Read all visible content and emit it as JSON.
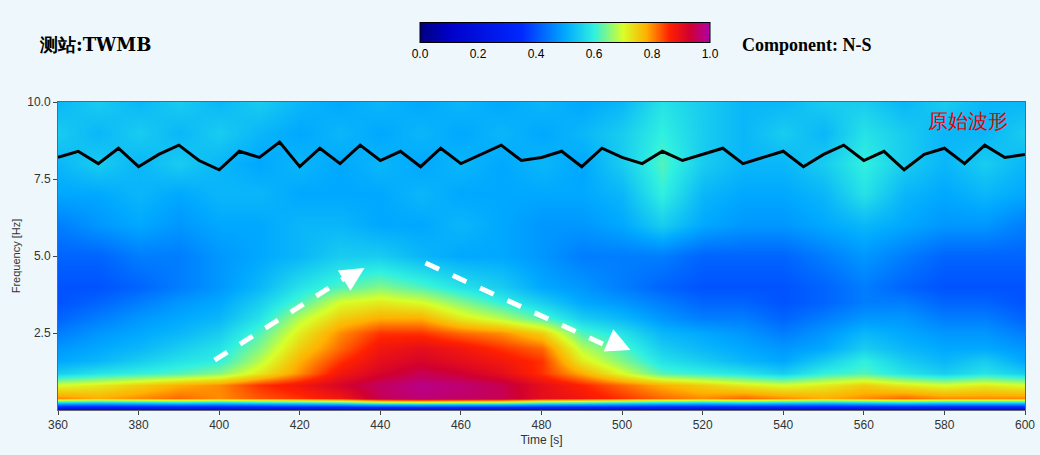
{
  "chart_data": {
    "type": "heatmap",
    "title": "测站:TWMB",
    "subtitle": "Component: N-S",
    "x_label": "Time [s]",
    "y_label": "Frequency [Hz]",
    "xlim": [
      360,
      600
    ],
    "xticks": [
      360,
      380,
      400,
      420,
      440,
      460,
      480,
      500,
      520,
      540,
      560,
      580,
      600
    ],
    "ylim": [
      0,
      10
    ],
    "yticks": [
      2.5,
      {
        "value": 5,
        "label": "5.0"
      },
      7.5,
      {
        "value": 10,
        "label": "10.0"
      }
    ],
    "grid": false,
    "x": [
      360,
      370,
      380,
      390,
      400,
      410,
      420,
      430,
      440,
      450,
      460,
      470,
      480,
      490,
      500,
      510,
      520,
      530,
      540,
      550,
      560,
      570,
      580,
      590,
      600
    ],
    "y": [
      0.0,
      0.4,
      0.8,
      1.2,
      1.6,
      2.0,
      2.5,
      3.0,
      3.5,
      4.0,
      5.0,
      6.0,
      7.0,
      8.0,
      9.0,
      10.0
    ],
    "z": [
      [
        0.15,
        0.15,
        0.15,
        0.15,
        0.15,
        0.15,
        0.15,
        0.15,
        0.15,
        0.15,
        0.15,
        0.15,
        0.15,
        0.15,
        0.15,
        0.15,
        0.15,
        0.15,
        0.15,
        0.15,
        0.15,
        0.15,
        0.15,
        0.15,
        0.15
      ],
      [
        0.8,
        0.78,
        0.8,
        0.82,
        0.8,
        0.83,
        0.85,
        0.88,
        0.95,
        0.97,
        0.96,
        0.95,
        0.9,
        0.88,
        0.85,
        0.82,
        0.8,
        0.82,
        0.8,
        0.78,
        0.8,
        0.82,
        0.8,
        0.8,
        0.8
      ],
      [
        0.7,
        0.72,
        0.75,
        0.78,
        0.8,
        0.85,
        0.88,
        0.92,
        0.96,
        0.98,
        0.97,
        0.95,
        0.9,
        0.86,
        0.82,
        0.78,
        0.75,
        0.72,
        0.7,
        0.72,
        0.75,
        0.72,
        0.7,
        0.72,
        0.7
      ],
      [
        0.55,
        0.58,
        0.6,
        0.62,
        0.65,
        0.72,
        0.8,
        0.88,
        0.92,
        0.95,
        0.93,
        0.9,
        0.85,
        0.78,
        0.7,
        0.62,
        0.6,
        0.58,
        0.55,
        0.6,
        0.62,
        0.58,
        0.55,
        0.58,
        0.55
      ],
      [
        0.5,
        0.52,
        0.55,
        0.58,
        0.6,
        0.68,
        0.78,
        0.85,
        0.9,
        0.92,
        0.9,
        0.88,
        0.85,
        0.72,
        0.65,
        0.58,
        0.55,
        0.52,
        0.5,
        0.55,
        0.6,
        0.55,
        0.52,
        0.55,
        0.5
      ],
      [
        0.48,
        0.5,
        0.52,
        0.55,
        0.58,
        0.65,
        0.75,
        0.82,
        0.88,
        0.9,
        0.88,
        0.85,
        0.82,
        0.68,
        0.62,
        0.55,
        0.52,
        0.5,
        0.48,
        0.5,
        0.55,
        0.52,
        0.5,
        0.5,
        0.48
      ],
      [
        0.45,
        0.48,
        0.5,
        0.52,
        0.55,
        0.62,
        0.72,
        0.8,
        0.85,
        0.85,
        0.82,
        0.8,
        0.75,
        0.62,
        0.58,
        0.52,
        0.5,
        0.48,
        0.45,
        0.48,
        0.52,
        0.5,
        0.48,
        0.48,
        0.45
      ],
      [
        0.42,
        0.45,
        0.48,
        0.5,
        0.52,
        0.58,
        0.68,
        0.75,
        0.78,
        0.78,
        0.72,
        0.68,
        0.62,
        0.55,
        0.52,
        0.48,
        0.45,
        0.45,
        0.42,
        0.45,
        0.48,
        0.48,
        0.45,
        0.45,
        0.42
      ],
      [
        0.4,
        0.42,
        0.45,
        0.48,
        0.5,
        0.55,
        0.62,
        0.7,
        0.72,
        0.7,
        0.65,
        0.6,
        0.55,
        0.5,
        0.48,
        0.45,
        0.42,
        0.42,
        0.4,
        0.42,
        0.45,
        0.45,
        0.42,
        0.42,
        0.4
      ],
      [
        0.4,
        0.4,
        0.42,
        0.45,
        0.48,
        0.52,
        0.58,
        0.62,
        0.65,
        0.62,
        0.58,
        0.55,
        0.5,
        0.48,
        0.45,
        0.42,
        0.4,
        0.4,
        0.4,
        0.42,
        0.45,
        0.42,
        0.4,
        0.4,
        0.4
      ],
      [
        0.42,
        0.42,
        0.45,
        0.45,
        0.48,
        0.5,
        0.52,
        0.55,
        0.55,
        0.52,
        0.5,
        0.5,
        0.48,
        0.45,
        0.45,
        0.45,
        0.42,
        0.42,
        0.42,
        0.45,
        0.48,
        0.45,
        0.42,
        0.42,
        0.42
      ],
      [
        0.45,
        0.48,
        0.5,
        0.48,
        0.5,
        0.5,
        0.52,
        0.52,
        0.5,
        0.5,
        0.52,
        0.5,
        0.48,
        0.48,
        0.5,
        0.55,
        0.5,
        0.48,
        0.48,
        0.5,
        0.52,
        0.5,
        0.48,
        0.48,
        0.45
      ],
      [
        0.5,
        0.5,
        0.52,
        0.5,
        0.52,
        0.52,
        0.5,
        0.5,
        0.5,
        0.52,
        0.5,
        0.5,
        0.5,
        0.5,
        0.52,
        0.6,
        0.52,
        0.5,
        0.5,
        0.52,
        0.58,
        0.52,
        0.5,
        0.52,
        0.5
      ],
      [
        0.52,
        0.55,
        0.52,
        0.55,
        0.52,
        0.5,
        0.52,
        0.5,
        0.52,
        0.5,
        0.52,
        0.5,
        0.52,
        0.5,
        0.55,
        0.62,
        0.55,
        0.52,
        0.52,
        0.55,
        0.6,
        0.55,
        0.52,
        0.55,
        0.52
      ],
      [
        0.55,
        0.52,
        0.55,
        0.52,
        0.55,
        0.52,
        0.5,
        0.52,
        0.5,
        0.52,
        0.5,
        0.52,
        0.5,
        0.52,
        0.55,
        0.6,
        0.55,
        0.52,
        0.55,
        0.52,
        0.58,
        0.55,
        0.52,
        0.52,
        0.55
      ],
      [
        0.52,
        0.55,
        0.52,
        0.55,
        0.52,
        0.55,
        0.52,
        0.5,
        0.52,
        0.5,
        0.52,
        0.5,
        0.52,
        0.5,
        0.52,
        0.58,
        0.55,
        0.52,
        0.52,
        0.55,
        0.55,
        0.52,
        0.55,
        0.52,
        0.52
      ]
    ],
    "colorbar": {
      "range": [
        0,
        1
      ],
      "ticks": [
        {
          "value": 0,
          "label": "0.0"
        },
        0.2,
        0.4,
        0.6,
        0.8,
        {
          "value": 1,
          "label": "1.0"
        }
      ]
    },
    "series": [
      {
        "name": "原始波形",
        "type": "line",
        "color": "#000000",
        "x": [
          360,
          365,
          370,
          375,
          380,
          385,
          390,
          395,
          400,
          405,
          410,
          415,
          420,
          425,
          430,
          435,
          440,
          445,
          450,
          455,
          460,
          465,
          470,
          475,
          480,
          485,
          490,
          495,
          500,
          505,
          510,
          515,
          520,
          525,
          530,
          535,
          540,
          545,
          550,
          555,
          560,
          565,
          570,
          575,
          580,
          585,
          590,
          595,
          600
        ],
        "values": [
          8.2,
          8.4,
          8.0,
          8.5,
          7.9,
          8.3,
          8.6,
          8.1,
          7.8,
          8.4,
          8.2,
          8.7,
          7.9,
          8.5,
          8.0,
          8.6,
          8.1,
          8.4,
          7.9,
          8.5,
          8.0,
          8.3,
          8.6,
          8.1,
          8.2,
          8.4,
          7.9,
          8.5,
          8.2,
          8.0,
          8.4,
          8.1,
          8.3,
          8.5,
          8.0,
          8.2,
          8.4,
          7.9,
          8.3,
          8.6,
          8.1,
          8.4,
          7.8,
          8.3,
          8.5,
          8.0,
          8.6,
          8.2,
          8.3
        ]
      }
    ]
  }
}
